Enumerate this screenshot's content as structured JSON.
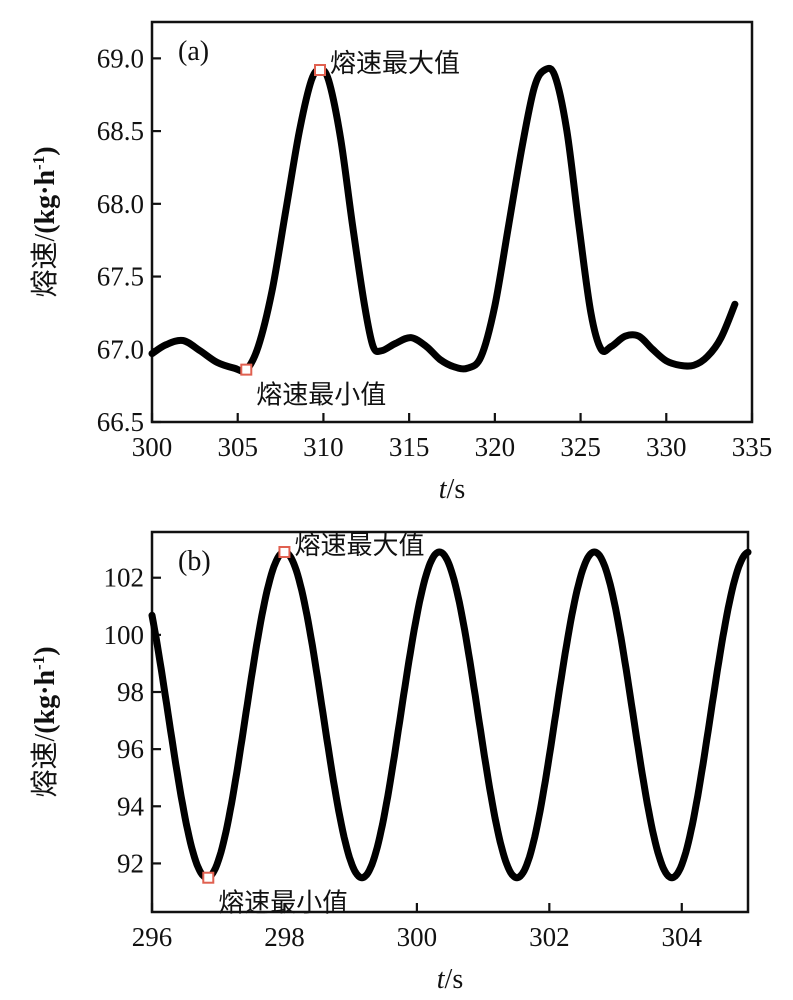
{
  "chart_data": [
    {
      "type": "line",
      "panel_label": "(a)",
      "xlabel_italic": "t",
      "xlabel_unit": "/s",
      "ylabel_prefix": "熔速/",
      "ylabel_unit": "(kg·h",
      "ylabel_exp": "-1",
      "ylabel_suffix": ")",
      "xlim": [
        300,
        335
      ],
      "ylim": [
        66.5,
        69.25
      ],
      "xticks": [
        300,
        305,
        310,
        315,
        320,
        325,
        330,
        335
      ],
      "yticks": [
        66.5,
        67.0,
        67.5,
        68.0,
        68.5,
        69.0
      ],
      "ytick_decimals": 1,
      "line_color": "#000000",
      "marker_color": "#e06050",
      "series": [
        {
          "x": [
            300,
            300.8,
            301.8,
            302.8,
            303.8,
            304.8,
            305.5,
            306.2,
            307,
            307.8,
            308.6,
            309.3,
            309.8,
            310.3,
            311,
            311.7,
            312.4,
            312.9,
            313.4,
            314.2,
            315.1,
            316,
            316.8,
            317.6,
            318.4,
            319.2,
            320,
            320.8,
            321.6,
            322.3,
            322.9,
            323.5,
            324.2,
            324.9,
            325.6,
            326.2,
            326.8,
            327.6,
            328.4,
            329.2,
            330,
            330.8,
            331.6,
            332.4,
            333.2,
            334
          ],
          "y": [
            66.97,
            67.03,
            67.06,
            66.99,
            66.91,
            66.87,
            66.86,
            67.02,
            67.4,
            67.95,
            68.5,
            68.85,
            68.92,
            68.85,
            68.45,
            67.85,
            67.3,
            67.02,
            66.99,
            67.04,
            67.08,
            67.02,
            66.93,
            66.88,
            66.87,
            66.95,
            67.3,
            67.85,
            68.4,
            68.8,
            68.92,
            68.88,
            68.5,
            67.85,
            67.25,
            67.0,
            67.02,
            67.09,
            67.09,
            67.0,
            66.92,
            66.89,
            66.89,
            66.95,
            67.08,
            67.31
          ]
        }
      ],
      "annotations": [
        {
          "text": "熔速最大值",
          "x": 309.8,
          "y": 68.92
        },
        {
          "text": "熔速最小值",
          "x": 305.5,
          "y": 66.86
        }
      ]
    },
    {
      "type": "line",
      "panel_label": "(b)",
      "xlabel_italic": "t",
      "xlabel_unit": "/s",
      "ylabel_prefix": "熔速/",
      "ylabel_unit": "(kg·h",
      "ylabel_exp": "-1",
      "ylabel_suffix": ")",
      "xlim": [
        296,
        305
      ],
      "ylim": [
        90.3,
        103.6
      ],
      "xticks": [
        296,
        298,
        300,
        302,
        304
      ],
      "yticks": [
        92,
        94,
        96,
        98,
        100,
        102
      ],
      "ytick_decimals": 0,
      "line_color": "#000000",
      "marker_color": "#e06050",
      "sine": {
        "mid": 97.2,
        "amp": 5.7,
        "period": 2.34,
        "peak_x": 298.0,
        "x_start": 296,
        "x_end": 305
      },
      "annotations": [
        {
          "text": "熔速最大值",
          "x": 298.0,
          "y": 102.9
        },
        {
          "text": "熔速最小值",
          "x": 296.85,
          "y": 91.5
        }
      ]
    }
  ]
}
